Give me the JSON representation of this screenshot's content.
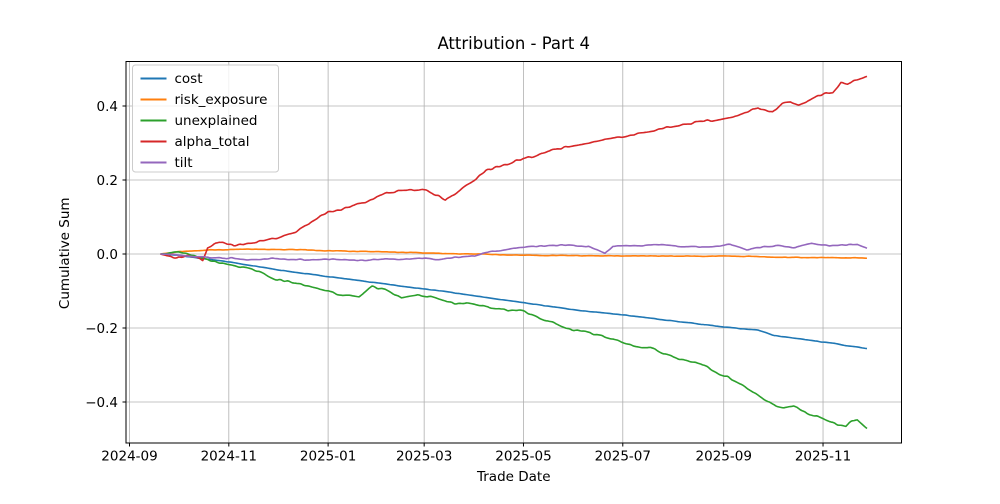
{
  "figure": {
    "title": "Attribution - Part 4",
    "xlabel": "Trade Date",
    "ylabel": "Cumulative Sum",
    "background_color": "#ffffff",
    "grid_color": "#b0b0b0",
    "spine_color": "#000000",
    "legend_border_color": "#cccccc"
  },
  "chart_data": {
    "type": "line",
    "title": "Attribution - Part 4",
    "xlabel": "Trade Date",
    "ylabel": "Cumulative Sum",
    "grid": true,
    "legend_position": "upper left",
    "ylim": [
      -0.51,
      0.52
    ],
    "xlim_dates": [
      "2024-08-30",
      "2025-12-17"
    ],
    "x_ticks": [
      {
        "label": "2024-09",
        "date": "2024-09-01"
      },
      {
        "label": "2024-11",
        "date": "2024-11-01"
      },
      {
        "label": "2025-01",
        "date": "2025-01-01"
      },
      {
        "label": "2025-03",
        "date": "2025-03-01"
      },
      {
        "label": "2025-05",
        "date": "2025-05-01"
      },
      {
        "label": "2025-07",
        "date": "2025-07-01"
      },
      {
        "label": "2025-09",
        "date": "2025-09-01"
      },
      {
        "label": "2025-11",
        "date": "2025-11-01"
      }
    ],
    "y_ticks": [
      {
        "label": "0.4",
        "value": 0.4
      },
      {
        "label": "0.2",
        "value": 0.2
      },
      {
        "label": "0.0",
        "value": 0.0
      },
      {
        "label": "−0.2",
        "value": -0.2
      },
      {
        "label": "−0.4",
        "value": -0.4
      }
    ],
    "series": [
      {
        "name": "cost",
        "color": "#1f77b4",
        "noise_amp": 0.001,
        "seed": 3,
        "points": [
          [
            "2024-09-20",
            0.0
          ],
          [
            "2024-10-01",
            -0.004
          ],
          [
            "2024-11-01",
            -0.021
          ],
          [
            "2024-12-01",
            -0.043
          ],
          [
            "2025-01-01",
            -0.061
          ],
          [
            "2025-02-01",
            -0.079
          ],
          [
            "2025-03-01",
            -0.094
          ],
          [
            "2025-04-01",
            -0.113
          ],
          [
            "2025-05-01",
            -0.132
          ],
          [
            "2025-06-01",
            -0.151
          ],
          [
            "2025-07-01",
            -0.164
          ],
          [
            "2025-08-01",
            -0.181
          ],
          [
            "2025-09-01",
            -0.197
          ],
          [
            "2025-09-22",
            -0.206
          ],
          [
            "2025-10-02",
            -0.22
          ],
          [
            "2025-11-01",
            -0.238
          ],
          [
            "2025-11-28",
            -0.255
          ]
        ]
      },
      {
        "name": "risk_exposure",
        "color": "#ff7f0e",
        "noise_amp": 0.0012,
        "seed": 11,
        "points": [
          [
            "2024-09-20",
            0.0
          ],
          [
            "2024-10-01",
            0.006
          ],
          [
            "2024-10-20",
            0.011
          ],
          [
            "2024-11-10",
            0.013
          ],
          [
            "2024-12-10",
            0.012
          ],
          [
            "2025-01-10",
            0.008
          ],
          [
            "2025-02-10",
            0.005
          ],
          [
            "2025-03-10",
            0.002
          ],
          [
            "2025-04-10",
            -0.001
          ],
          [
            "2025-05-10",
            -0.004
          ],
          [
            "2025-06-10",
            -0.005
          ],
          [
            "2025-07-10",
            -0.005
          ],
          [
            "2025-08-10",
            -0.006
          ],
          [
            "2025-09-15",
            -0.006
          ],
          [
            "2025-10-10",
            -0.009
          ],
          [
            "2025-11-01",
            -0.01
          ],
          [
            "2025-11-28",
            -0.011
          ]
        ]
      },
      {
        "name": "unexplained",
        "color": "#2ca02c",
        "noise_amp": 0.0045,
        "seed": 27,
        "points": [
          [
            "2024-09-20",
            0.0
          ],
          [
            "2024-10-01",
            0.005
          ],
          [
            "2024-10-15",
            -0.01
          ],
          [
            "2024-11-01",
            -0.028
          ],
          [
            "2024-11-15",
            -0.042
          ],
          [
            "2024-12-01",
            -0.07
          ],
          [
            "2024-12-15",
            -0.082
          ],
          [
            "2025-01-01",
            -0.1
          ],
          [
            "2025-01-10",
            -0.112
          ],
          [
            "2025-01-20",
            -0.115
          ],
          [
            "2025-01-28",
            -0.088
          ],
          [
            "2025-02-05",
            -0.095
          ],
          [
            "2025-02-15",
            -0.118
          ],
          [
            "2025-02-25",
            -0.112
          ],
          [
            "2025-03-05",
            -0.118
          ],
          [
            "2025-03-15",
            -0.13
          ],
          [
            "2025-04-01",
            -0.135
          ],
          [
            "2025-04-10",
            -0.147
          ],
          [
            "2025-04-20",
            -0.15
          ],
          [
            "2025-05-01",
            -0.156
          ],
          [
            "2025-05-10",
            -0.17
          ],
          [
            "2025-05-20",
            -0.185
          ],
          [
            "2025-05-28",
            -0.2
          ],
          [
            "2025-06-10",
            -0.215
          ],
          [
            "2025-06-20",
            -0.225
          ],
          [
            "2025-07-01",
            -0.24
          ],
          [
            "2025-07-18",
            -0.256
          ],
          [
            "2025-08-01",
            -0.278
          ],
          [
            "2025-08-20",
            -0.3
          ],
          [
            "2025-09-01",
            -0.33
          ],
          [
            "2025-09-12",
            -0.352
          ],
          [
            "2025-09-22",
            -0.383
          ],
          [
            "2025-09-28",
            -0.402
          ],
          [
            "2025-10-08",
            -0.415
          ],
          [
            "2025-10-14",
            -0.41
          ],
          [
            "2025-10-22",
            -0.432
          ],
          [
            "2025-11-01",
            -0.445
          ],
          [
            "2025-11-10",
            -0.459
          ],
          [
            "2025-11-15",
            -0.464
          ],
          [
            "2025-11-19",
            -0.45
          ],
          [
            "2025-11-22",
            -0.446
          ],
          [
            "2025-11-28",
            -0.47
          ]
        ]
      },
      {
        "name": "alpha_total",
        "color": "#d62728",
        "noise_amp": 0.0045,
        "seed": 41,
        "points": [
          [
            "2024-09-20",
            0.0
          ],
          [
            "2024-09-30",
            -0.011
          ],
          [
            "2024-10-07",
            -0.005
          ],
          [
            "2024-10-16",
            -0.016
          ],
          [
            "2024-10-19",
            0.02
          ],
          [
            "2024-10-26",
            0.033
          ],
          [
            "2024-11-04",
            0.022
          ],
          [
            "2024-11-18",
            0.033
          ],
          [
            "2024-12-01",
            0.042
          ],
          [
            "2024-12-12",
            0.058
          ],
          [
            "2024-12-21",
            0.086
          ],
          [
            "2025-01-01",
            0.112
          ],
          [
            "2025-01-11",
            0.124
          ],
          [
            "2025-01-24",
            0.141
          ],
          [
            "2025-02-06",
            0.165
          ],
          [
            "2025-02-15",
            0.172
          ],
          [
            "2025-02-28",
            0.176
          ],
          [
            "2025-03-10",
            0.158
          ],
          [
            "2025-03-14",
            0.146
          ],
          [
            "2025-03-22",
            0.17
          ],
          [
            "2025-03-28",
            0.186
          ],
          [
            "2025-04-08",
            0.226
          ],
          [
            "2025-04-22",
            0.246
          ],
          [
            "2025-05-04",
            0.262
          ],
          [
            "2025-05-18",
            0.28
          ],
          [
            "2025-06-01",
            0.295
          ],
          [
            "2025-06-12",
            0.303
          ],
          [
            "2025-07-02",
            0.316
          ],
          [
            "2025-07-22",
            0.335
          ],
          [
            "2025-08-17",
            0.357
          ],
          [
            "2025-09-01",
            0.365
          ],
          [
            "2025-09-10",
            0.375
          ],
          [
            "2025-09-22",
            0.395
          ],
          [
            "2025-09-26",
            0.388
          ],
          [
            "2025-10-01",
            0.382
          ],
          [
            "2025-10-07",
            0.405
          ],
          [
            "2025-10-12",
            0.41
          ],
          [
            "2025-10-17",
            0.403
          ],
          [
            "2025-10-23",
            0.415
          ],
          [
            "2025-11-01",
            0.432
          ],
          [
            "2025-11-07",
            0.437
          ],
          [
            "2025-11-12",
            0.462
          ],
          [
            "2025-11-16",
            0.458
          ],
          [
            "2025-11-20",
            0.466
          ],
          [
            "2025-11-24",
            0.472
          ],
          [
            "2025-11-28",
            0.478
          ]
        ]
      },
      {
        "name": "tilt",
        "color": "#9467bd",
        "noise_amp": 0.0028,
        "seed": 55,
        "points": [
          [
            "2024-09-20",
            0.0
          ],
          [
            "2024-10-01",
            -0.002
          ],
          [
            "2024-10-15",
            -0.008
          ],
          [
            "2024-11-01",
            -0.012
          ],
          [
            "2024-11-15",
            -0.015
          ],
          [
            "2024-12-01",
            -0.013
          ],
          [
            "2024-12-15",
            -0.016
          ],
          [
            "2025-01-01",
            -0.014
          ],
          [
            "2025-01-15",
            -0.018
          ],
          [
            "2025-02-01",
            -0.015
          ],
          [
            "2025-02-20",
            -0.014
          ],
          [
            "2025-03-01",
            -0.01
          ],
          [
            "2025-03-10",
            -0.016
          ],
          [
            "2025-03-20",
            -0.008
          ],
          [
            "2025-04-01",
            -0.005
          ],
          [
            "2025-04-10",
            0.005
          ],
          [
            "2025-04-25",
            0.015
          ],
          [
            "2025-05-10",
            0.02
          ],
          [
            "2025-05-25",
            0.024
          ],
          [
            "2025-06-10",
            0.02
          ],
          [
            "2025-06-20",
            0.0
          ],
          [
            "2025-06-25",
            0.02
          ],
          [
            "2025-07-10",
            0.022
          ],
          [
            "2025-07-25",
            0.024
          ],
          [
            "2025-08-10",
            0.02
          ],
          [
            "2025-08-25",
            0.018
          ],
          [
            "2025-09-05",
            0.025
          ],
          [
            "2025-09-15",
            0.012
          ],
          [
            "2025-09-25",
            0.02
          ],
          [
            "2025-10-05",
            0.022
          ],
          [
            "2025-10-15",
            0.018
          ],
          [
            "2025-10-25",
            0.028
          ],
          [
            "2025-11-05",
            0.022
          ],
          [
            "2025-11-15",
            0.025
          ],
          [
            "2025-11-22",
            0.025
          ],
          [
            "2025-11-28",
            0.014
          ]
        ]
      }
    ]
  }
}
